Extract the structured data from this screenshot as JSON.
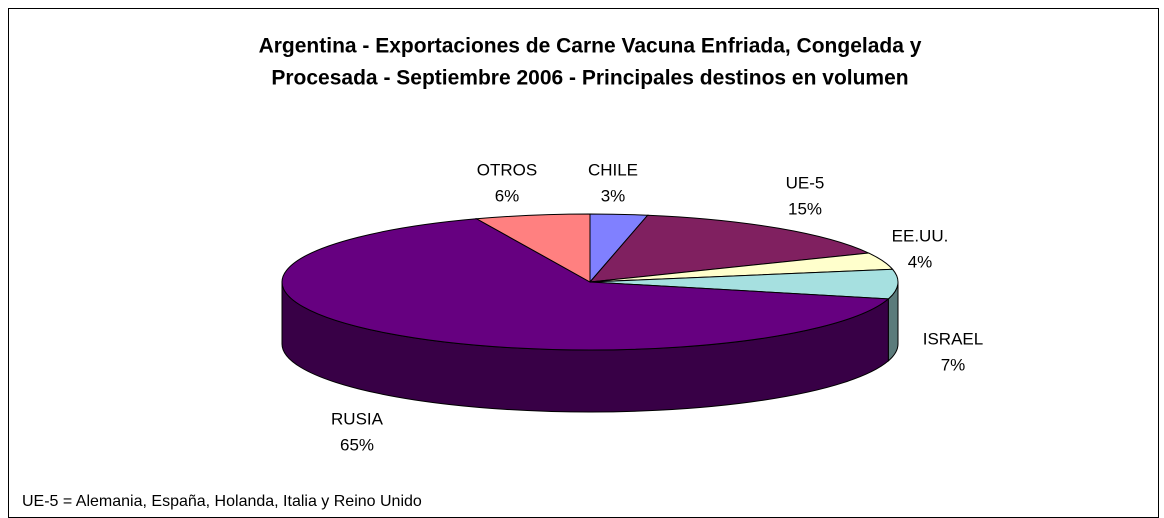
{
  "chart_data": {
    "type": "pie3d",
    "title": [
      "Argentina - Exportaciones de Carne Vacuna Enfriada, Congelada y",
      "Procesada - Septiembre 2006 - Principales destinos en volumen"
    ],
    "categories": [
      "CHILE",
      "UE-5",
      "EE.UU.",
      "ISRAEL",
      "RUSIA",
      "OTROS"
    ],
    "values": [
      3,
      15,
      4,
      7,
      65,
      6
    ],
    "value_labels": [
      "3%",
      "15%",
      "4%",
      "7%",
      "65%",
      "6%"
    ],
    "colors": [
      "#8080ff",
      "#802060",
      "#ffffcc",
      "#a6e0e0",
      "#660080",
      "#ff8080"
    ],
    "footnote": "UE-5 = Alemania, España, Holanda, Italia y Reino Unido"
  }
}
